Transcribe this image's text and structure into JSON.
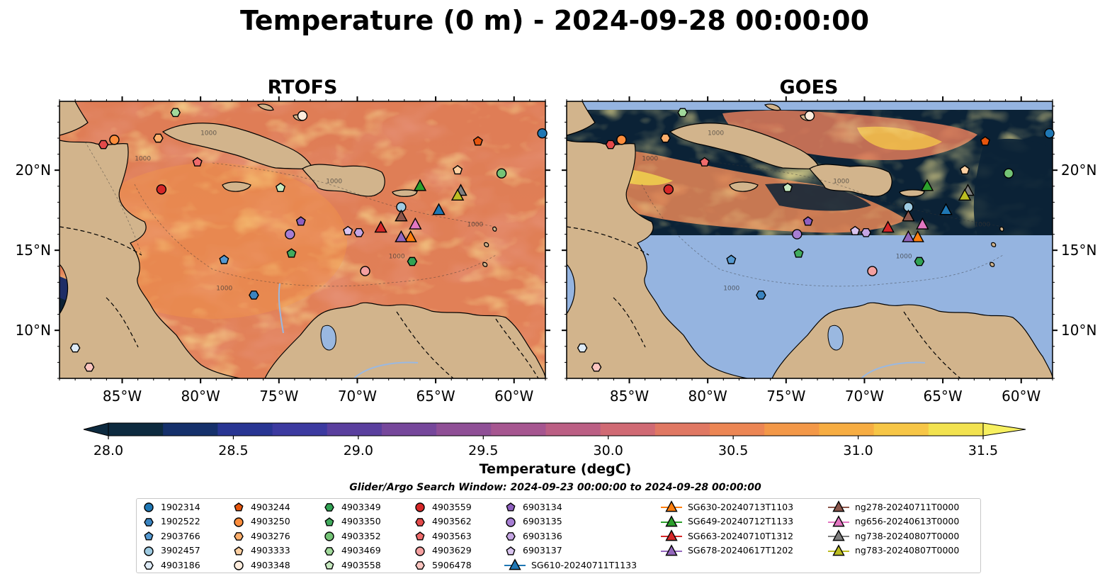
{
  "title": "Temperature (0 m) - 2024-09-28 00:00:00",
  "colors": {
    "ocean_warm": "#f08a4b",
    "ocean_mid": "#b8607c",
    "ocean_cool": "#2b2d7a",
    "ocean_cold": "#0b2236",
    "land": "#d2b48c",
    "goes_nodata": "#95b4e0",
    "lake": "#9ab8e0"
  },
  "chart_data": {
    "type": "heatmap",
    "panels": [
      {
        "title": "RTOFS"
      },
      {
        "title": "GOES"
      }
    ],
    "xlim": [
      -89,
      -58
    ],
    "ylim": [
      7,
      24.3
    ],
    "x_ticks": [
      "85°W",
      "80°W",
      "75°W",
      "70°W",
      "65°W",
      "60°W"
    ],
    "x_tick_values": [
      -85,
      -80,
      -75,
      -70,
      -65,
      -60
    ],
    "y_ticks": [
      "20°N",
      "15°N",
      "10°N"
    ],
    "y_tick_values": [
      20,
      15,
      10
    ],
    "contour_label": "1000",
    "colorbar": {
      "label": "Temperature (degC)",
      "min": 28.0,
      "max": 31.5,
      "ticks": [
        "28.0",
        "28.5",
        "29.0",
        "29.5",
        "30.0",
        "30.5",
        "31.0",
        "31.5"
      ],
      "colors": [
        "#0d2a3f",
        "#15306b",
        "#283593",
        "#3c3aa0",
        "#5a3f9e",
        "#76479b",
        "#8f4f96",
        "#a65690",
        "#bb5f84",
        "#d06a74",
        "#e07863",
        "#ec8654",
        "#f39848",
        "#f7ad42",
        "#f7c646",
        "#f2e24f"
      ]
    },
    "search_window": "Glider/Argo Search Window: 2024-09-23 00:00:00 to 2024-09-28 00:00:00",
    "floats": [
      {
        "id": "1902314",
        "lon": -58.2,
        "lat": 22.3,
        "shape": "circle",
        "color": "#1f77b4"
      },
      {
        "id": "1902522",
        "lon": -76.6,
        "lat": 12.2,
        "shape": "hexagon",
        "color": "#3a84c1"
      },
      {
        "id": "2903766",
        "lon": -78.5,
        "lat": 14.4,
        "shape": "pentagon",
        "color": "#5599d1"
      },
      {
        "id": "3902457",
        "lon": -67.2,
        "lat": 17.7,
        "shape": "circle",
        "color": "#9ecae1"
      },
      {
        "id": "4903186",
        "lon": -88.0,
        "lat": 8.9,
        "shape": "hexagon",
        "color": "#deebf7"
      },
      {
        "id": "4903244",
        "lon": -62.3,
        "lat": 21.8,
        "shape": "pentagon",
        "color": "#e6550d"
      },
      {
        "id": "4903250",
        "lon": -85.5,
        "lat": 21.9,
        "shape": "circle",
        "color": "#fd8d3c"
      },
      {
        "id": "4903276",
        "lon": -82.7,
        "lat": 22.0,
        "shape": "hexagon",
        "color": "#fdae6b"
      },
      {
        "id": "4903333",
        "lon": -63.6,
        "lat": 20.0,
        "shape": "pentagon",
        "color": "#fdd0a2"
      },
      {
        "id": "4903348",
        "lon": -73.5,
        "lat": 23.4,
        "shape": "circle",
        "color": "#feedde"
      },
      {
        "id": "4903349",
        "lon": -66.5,
        "lat": 14.3,
        "shape": "hexagon",
        "color": "#31a354"
      },
      {
        "id": "4903350",
        "lon": -74.2,
        "lat": 14.8,
        "shape": "pentagon",
        "color": "#41ab5d"
      },
      {
        "id": "4903352",
        "lon": -60.8,
        "lat": 19.8,
        "shape": "circle",
        "color": "#74c476"
      },
      {
        "id": "4903469",
        "lon": -81.6,
        "lat": 23.6,
        "shape": "hexagon",
        "color": "#a1d99b"
      },
      {
        "id": "4903558",
        "lon": -74.9,
        "lat": 18.9,
        "shape": "pentagon",
        "color": "#c7e9c0"
      },
      {
        "id": "4903559",
        "lon": -82.5,
        "lat": 18.8,
        "shape": "circle",
        "color": "#d62728"
      },
      {
        "id": "4903562",
        "lon": -86.2,
        "lat": 21.6,
        "shape": "hexagon",
        "color": "#e34a4a"
      },
      {
        "id": "4903563",
        "lon": -80.2,
        "lat": 20.5,
        "shape": "pentagon",
        "color": "#ef6b6b"
      },
      {
        "id": "4903629",
        "lon": -69.5,
        "lat": 13.7,
        "shape": "circle",
        "color": "#f4a0a0"
      },
      {
        "id": "5906478",
        "lon": -87.1,
        "lat": 7.7,
        "shape": "hexagon",
        "color": "#fcc5c0"
      },
      {
        "id": "6903134",
        "lon": -73.6,
        "lat": 16.8,
        "shape": "pentagon",
        "color": "#8e5fbf"
      },
      {
        "id": "6903135",
        "lon": -74.3,
        "lat": 16.0,
        "shape": "circle",
        "color": "#a67ed3"
      },
      {
        "id": "6903136",
        "lon": -69.9,
        "lat": 16.1,
        "shape": "hexagon",
        "color": "#c5a6e3"
      },
      {
        "id": "6903137",
        "lon": -70.6,
        "lat": 16.2,
        "shape": "pentagon",
        "color": "#d9c4ef"
      }
    ],
    "gliders": [
      {
        "id": "SG610-20240711T1133",
        "lon": -64.8,
        "lat": 17.5,
        "color": "#1f77b4"
      },
      {
        "id": "SG630-20240713T1103",
        "lon": -66.6,
        "lat": 15.8,
        "color": "#ff7f0e"
      },
      {
        "id": "SG649-20240712T1133",
        "lon": -66.0,
        "lat": 19.0,
        "color": "#2ca02c"
      },
      {
        "id": "SG663-20240710T1312",
        "lon": -68.5,
        "lat": 16.4,
        "color": "#d62728"
      },
      {
        "id": "SG678-20240617T1202",
        "lon": -67.2,
        "lat": 15.8,
        "color": "#9467bd"
      },
      {
        "id": "ng278-20240711T0000",
        "lon": -67.2,
        "lat": 17.1,
        "color": "#8c564b"
      },
      {
        "id": "ng656-20240613T0000",
        "lon": -66.3,
        "lat": 16.6,
        "color": "#e377c2"
      },
      {
        "id": "ng738-20240807T0000",
        "lon": -63.4,
        "lat": 18.7,
        "color": "#7f7f7f"
      },
      {
        "id": "ng783-20240807T0000",
        "lon": -63.6,
        "lat": 18.4,
        "color": "#bcbd22"
      }
    ]
  }
}
